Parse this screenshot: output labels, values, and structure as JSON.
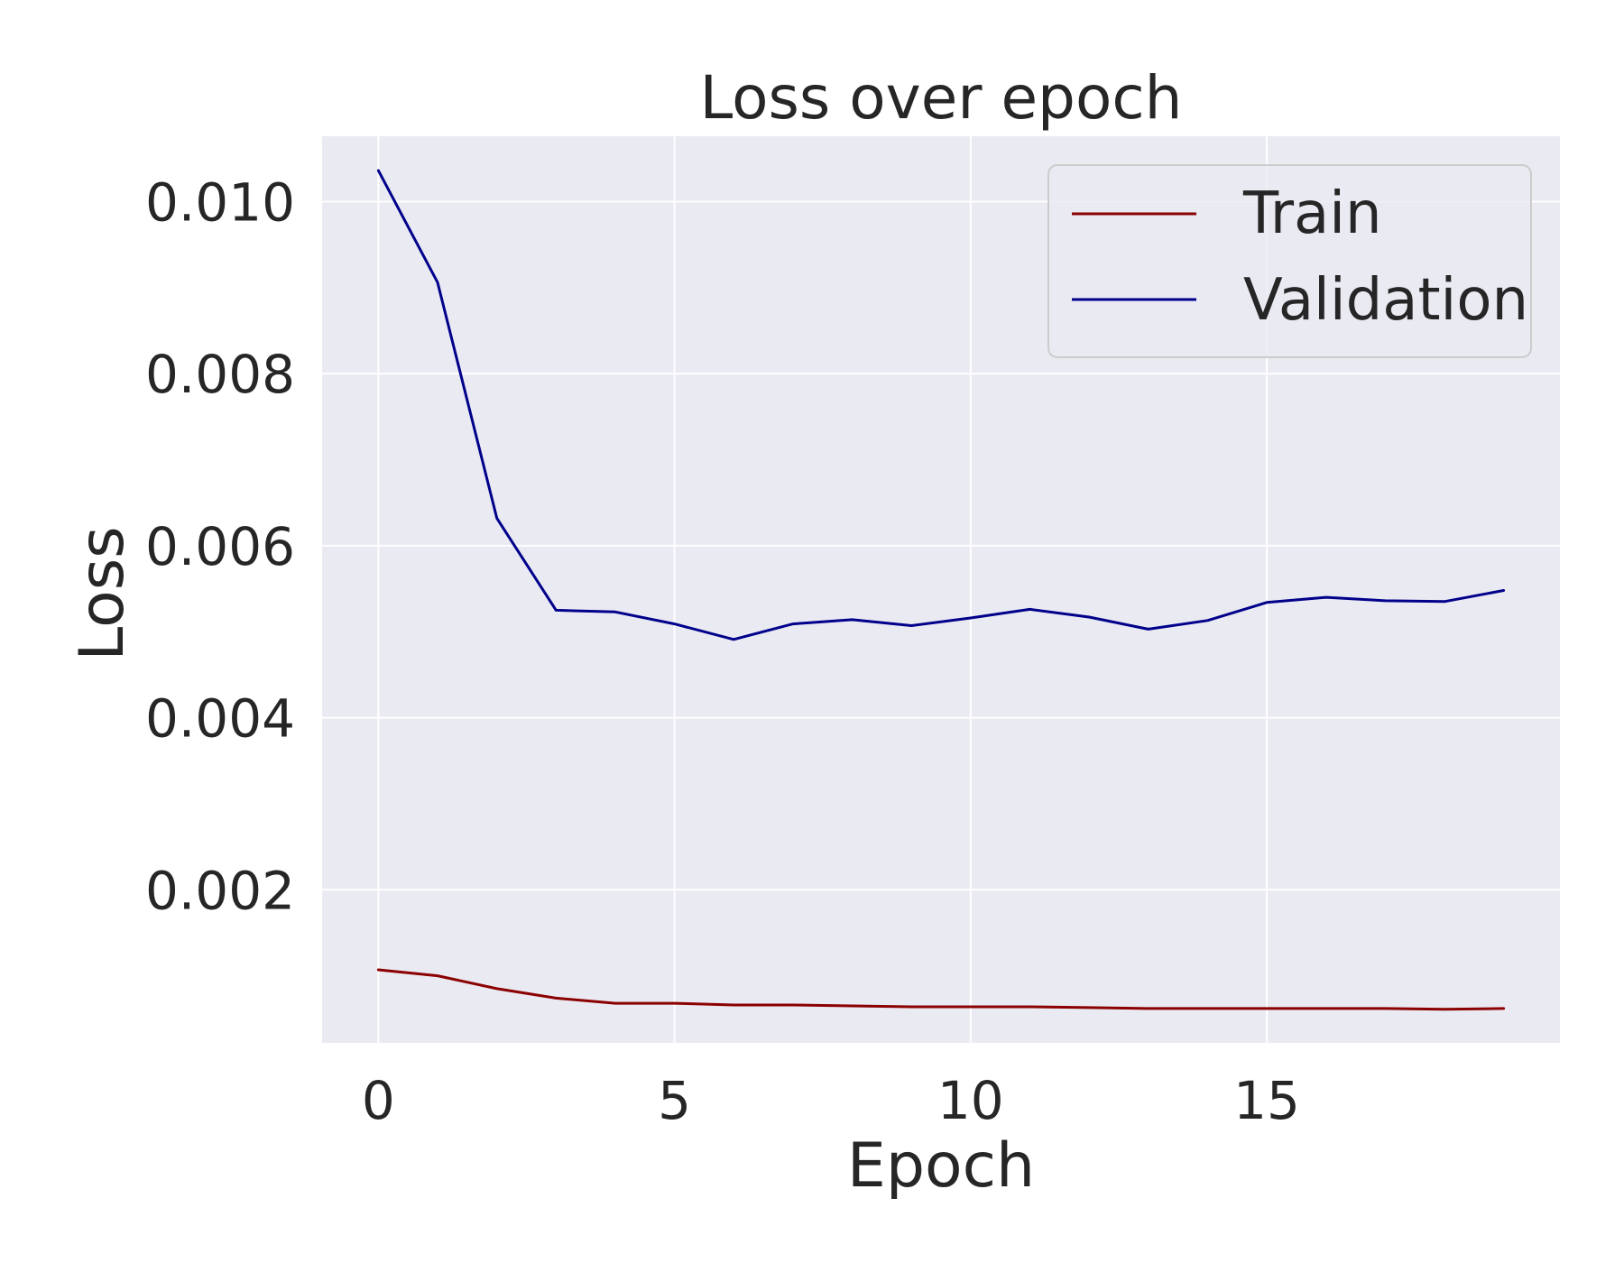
{
  "chart_data": {
    "type": "line",
    "title": "Loss over epoch",
    "xlabel": "Epoch",
    "ylabel": "Loss",
    "xlim": [
      -0.95,
      19.95
    ],
    "ylim": [
      0.00022,
      0.01076
    ],
    "xticks": [
      0,
      5,
      10,
      15
    ],
    "xtick_labels": [
      "0",
      "5",
      "10",
      "15"
    ],
    "yticks": [
      0.002,
      0.004,
      0.006,
      0.008,
      0.01
    ],
    "ytick_labels": [
      "0.002",
      "0.004",
      "0.006",
      "0.008",
      "0.010"
    ],
    "grid": true,
    "legend_position": "top-right",
    "x": [
      0,
      1,
      2,
      3,
      4,
      5,
      6,
      7,
      8,
      9,
      10,
      11,
      12,
      13,
      14,
      15,
      16,
      17,
      18,
      19
    ],
    "series": [
      {
        "name": "Train",
        "color": "#8b0000",
        "values": [
          0.00107,
          0.001,
          0.00085,
          0.00074,
          0.00068,
          0.00068,
          0.00066,
          0.00066,
          0.00065,
          0.00064,
          0.00064,
          0.00064,
          0.00063,
          0.00062,
          0.00062,
          0.00062,
          0.00062,
          0.00062,
          0.00061,
          0.00062
        ]
      },
      {
        "name": "Validation",
        "color": "#00008b",
        "values": [
          0.01036,
          0.00906,
          0.00632,
          0.00525,
          0.00523,
          0.00509,
          0.00491,
          0.00509,
          0.00514,
          0.00507,
          0.00516,
          0.00526,
          0.00517,
          0.00503,
          0.00513,
          0.00534,
          0.0054,
          0.00536,
          0.00535,
          0.00548
        ]
      }
    ]
  }
}
